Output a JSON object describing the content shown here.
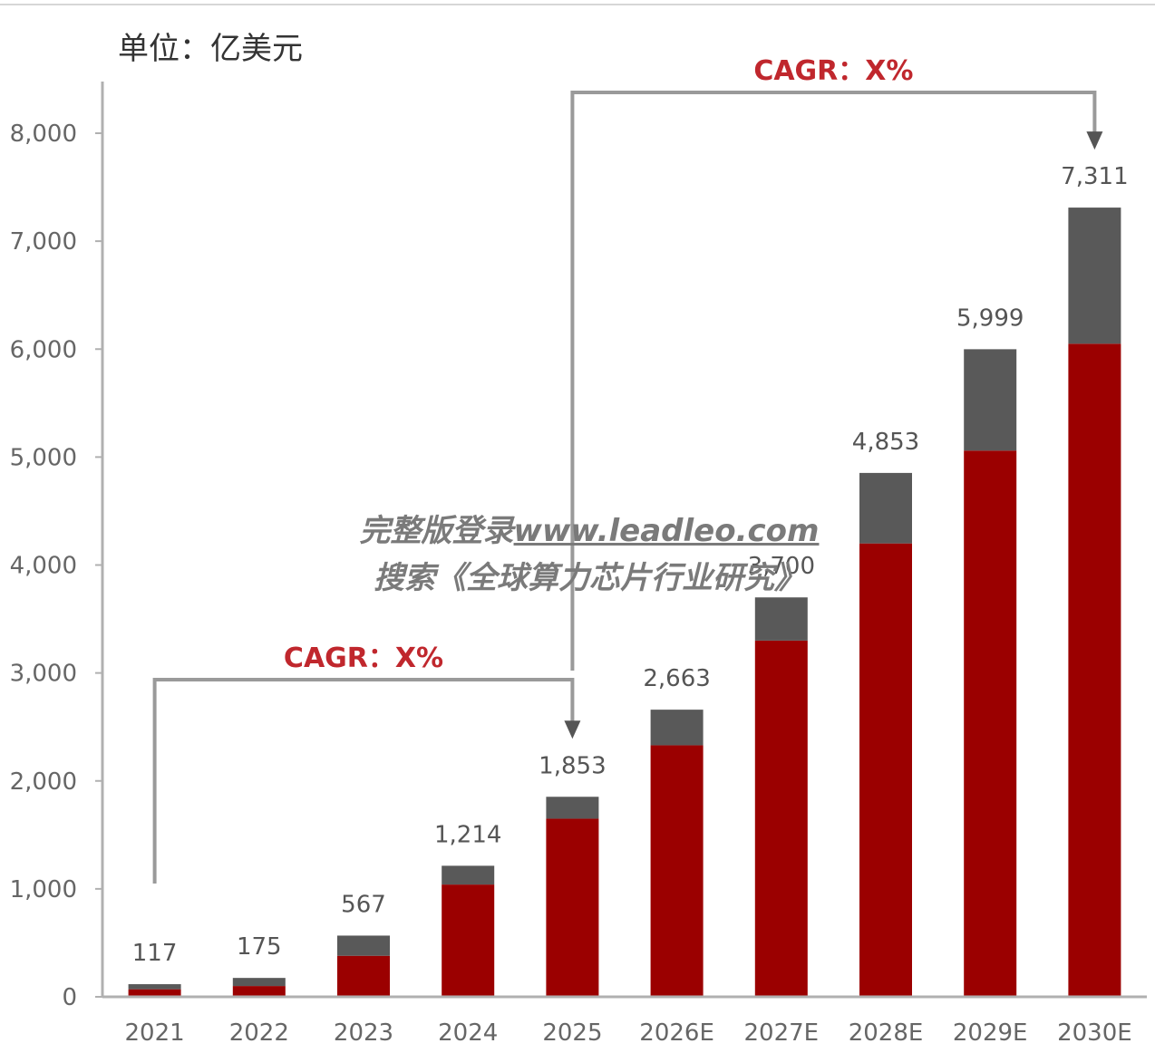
{
  "unit_label": "单位：亿美元",
  "watermark": {
    "line1_prefix": "完整版登录",
    "line1_link": "www.leadleo.com",
    "line2": "搜索《全球算力芯片行业研究》"
  },
  "colors": {
    "primary": "#9b0000",
    "secondary": "#595959",
    "accent": "#c0272d",
    "axis": "#b0b0b0"
  },
  "chart_data": {
    "type": "bar",
    "stacked": true,
    "categories": [
      "2021",
      "2022",
      "2023",
      "2024",
      "2025",
      "2026E",
      "2027E",
      "2028E",
      "2029E",
      "2030E"
    ],
    "series": [
      {
        "values": [
          70,
          100,
          380,
          1040,
          1650,
          2330,
          3300,
          4200,
          5060,
          6050
        ]
      },
      {
        "values": [
          47,
          75,
          187,
          174,
          203,
          330,
          400,
          653,
          939,
          1261
        ]
      }
    ],
    "totals": [
      "117",
      "175",
      "567",
      "1,214",
      "1,853",
      "2,663",
      "3,700",
      "4,853",
      "5,999",
      "7,311"
    ],
    "y_ticks": [
      0,
      1000,
      2000,
      3000,
      4000,
      5000,
      6000,
      7000,
      8000
    ],
    "y_tick_labels": [
      "0",
      "1,000",
      "2,000",
      "3,000",
      "4,000",
      "5,000",
      "6,000",
      "7,000",
      "8,000"
    ],
    "ylim": [
      0,
      8000
    ],
    "grid": false,
    "annotations": [
      {
        "label": "CAGR：X%",
        "from_index": 0,
        "to_index": 4
      },
      {
        "label": "CAGR：X%",
        "from_index": 4,
        "to_index": 9
      }
    ]
  }
}
